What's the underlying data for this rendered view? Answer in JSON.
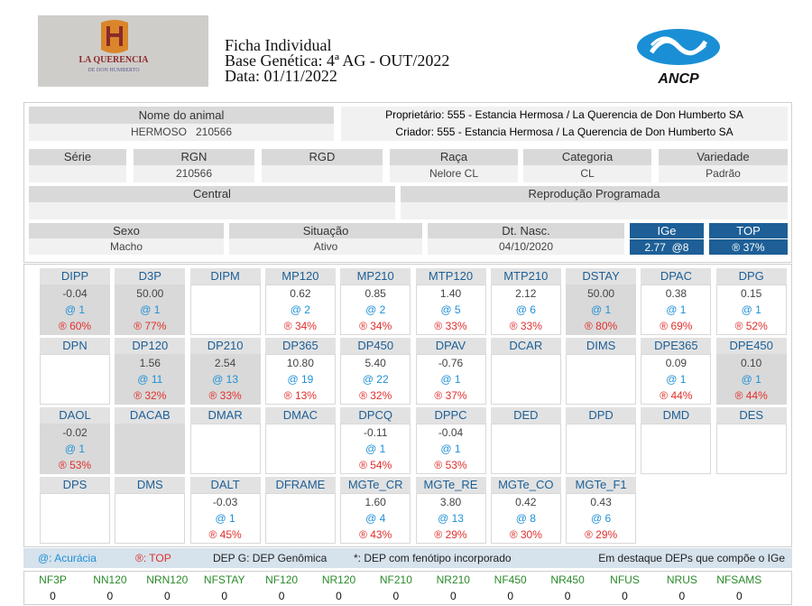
{
  "header": {
    "logo_lines": [
      "LA QUERENCIA",
      "DE DON HUMBERTO"
    ],
    "title_lines": [
      "Ficha Individual",
      "Base Genética: 4ª AG - OUT/2022",
      "Data: 01/11/2022"
    ],
    "brand": "ANCP"
  },
  "info": {
    "animal": {
      "label": "Nome do animal",
      "value": "HERMOSO   210566"
    },
    "owner_lines": [
      "Proprietário: 555 - Estancia Hermosa / La Querencia de Don Humberto SA",
      "Criador: 555 - Estancia Hermosa / La Querencia de Don Humberto SA"
    ],
    "row2": [
      {
        "label": "Série"
      },
      {
        "label": "RGN",
        "value": "210566"
      },
      {
        "label": "RGD"
      },
      {
        "label": "Raça",
        "value": "Nelore CL"
      },
      {
        "label": "Categoria",
        "value": "CL"
      },
      {
        "label": "Variedade",
        "value": "Padrão"
      }
    ],
    "row3": [
      {
        "label": "Central"
      },
      {
        "label": "Reprodução Programada"
      }
    ],
    "row4": [
      {
        "label": "Sexo",
        "value": "Macho"
      },
      {
        "label": "Situação",
        "value": "Ativo"
      },
      {
        "label": "Dt. Nasc.",
        "value": "04/10/2020"
      },
      {
        "label": "IGe",
        "value": "2.77  @8",
        "highlight": true
      },
      {
        "label": "TOP",
        "value": "® 37%",
        "highlight": true
      }
    ]
  },
  "dep": {
    "rows": [
      [
        {
          "name": "DIPP",
          "value": "-0.04",
          "accuracy": "@ 1",
          "top": "® 60%",
          "highlight": true
        },
        {
          "name": "D3P",
          "value": "50.00",
          "accuracy": "@ 1",
          "top": "® 77%",
          "highlight": true
        },
        {
          "name": "DIPM"
        },
        {
          "name": "MP120",
          "value": "0.62",
          "accuracy": "@ 2",
          "top": "® 34%"
        },
        {
          "name": "MP210",
          "value": "0.85",
          "accuracy": "@ 2",
          "top": "® 34%"
        },
        {
          "name": "MTP120",
          "value": "1.40",
          "accuracy": "@ 5",
          "top": "® 33%"
        },
        {
          "name": "MTP210",
          "value": "2.12",
          "accuracy": "@ 6",
          "top": "® 33%"
        },
        {
          "name": "DSTAY",
          "value": "50.00",
          "accuracy": "@ 1",
          "top": "® 80%",
          "highlight": true
        },
        {
          "name": "DPAC",
          "value": "0.38",
          "accuracy": "@ 1",
          "top": "® 69%"
        },
        {
          "name": "DPG",
          "value": "0.15",
          "accuracy": "@ 1",
          "top": "® 52%"
        }
      ],
      [
        {
          "name": "DPN"
        },
        {
          "name": "DP120",
          "value": "1.56",
          "accuracy": "@ 11",
          "top": "® 32%",
          "highlight": true
        },
        {
          "name": "DP210",
          "value": "2.54",
          "accuracy": "@ 13",
          "top": "® 33%",
          "highlight": true
        },
        {
          "name": "DP365",
          "value": "10.80",
          "accuracy": "@ 19",
          "top": "® 13%"
        },
        {
          "name": "DP450",
          "value": "5.40",
          "accuracy": "@ 22",
          "top": "® 32%"
        },
        {
          "name": "DPAV",
          "value": "-0.76",
          "accuracy": "@ 1",
          "top": "® 37%"
        },
        {
          "name": "DCAR"
        },
        {
          "name": "DIMS"
        },
        {
          "name": "DPE365",
          "value": "0.09",
          "accuracy": "@ 1",
          "top": "® 44%"
        },
        {
          "name": "DPE450",
          "value": "0.10",
          "accuracy": "@ 1",
          "top": "® 44%",
          "highlight": true
        }
      ],
      [
        {
          "name": "DAOL",
          "value": "-0.02",
          "accuracy": "@ 1",
          "top": "® 53%",
          "highlight": true
        },
        {
          "name": "DACAB",
          "highlight": true
        },
        {
          "name": "DMAR"
        },
        {
          "name": "DMAC"
        },
        {
          "name": "DPCQ",
          "value": "-0.11",
          "accuracy": "@ 1",
          "top": "® 54%"
        },
        {
          "name": "DPPC",
          "value": "-0.04",
          "accuracy": "@ 1",
          "top": "® 53%"
        },
        {
          "name": "DED"
        },
        {
          "name": "DPD"
        },
        {
          "name": "DMD"
        },
        {
          "name": "DES"
        }
      ],
      [
        {
          "name": "DPS"
        },
        {
          "name": "DMS"
        },
        {
          "name": "DALT",
          "value": "-0.03",
          "accuracy": "@ 1",
          "top": "® 45%"
        },
        {
          "name": "DFRAME"
        },
        {
          "name": "MGTe_CR",
          "value": "1.60",
          "accuracy": "@ 4",
          "top": "® 43%"
        },
        {
          "name": "MGTe_RE",
          "value": "3.80",
          "accuracy": "@ 13",
          "top": "® 29%"
        },
        {
          "name": "MGTe_CO",
          "value": "0.42",
          "accuracy": "@ 8",
          "top": "® 30%"
        },
        {
          "name": "MGTe_F1",
          "value": "0.43",
          "accuracy": "@ 6",
          "top": "® 29%"
        }
      ]
    ]
  },
  "legend": {
    "accuracy": "@: Acurácia",
    "top": "®: TOP",
    "genomic": "DEP G: DEP Genômica",
    "phenotype": "*: DEP com fenótipo incorporado",
    "highlight_note": "Em destaque DEPs que compõe o IGe"
  },
  "nf": {
    "names": [
      "NF3P",
      "NN120",
      "NRN120",
      "NFSTAY",
      "NF120",
      "NR120",
      "NF210",
      "NR210",
      "NF450",
      "NR450",
      "NFUS",
      "NRUS",
      "NFSAMS"
    ],
    "values": [
      "0",
      "0",
      "0",
      "0",
      "0",
      "0",
      "0",
      "0",
      "0",
      "0",
      "0",
      "0",
      "0"
    ]
  }
}
